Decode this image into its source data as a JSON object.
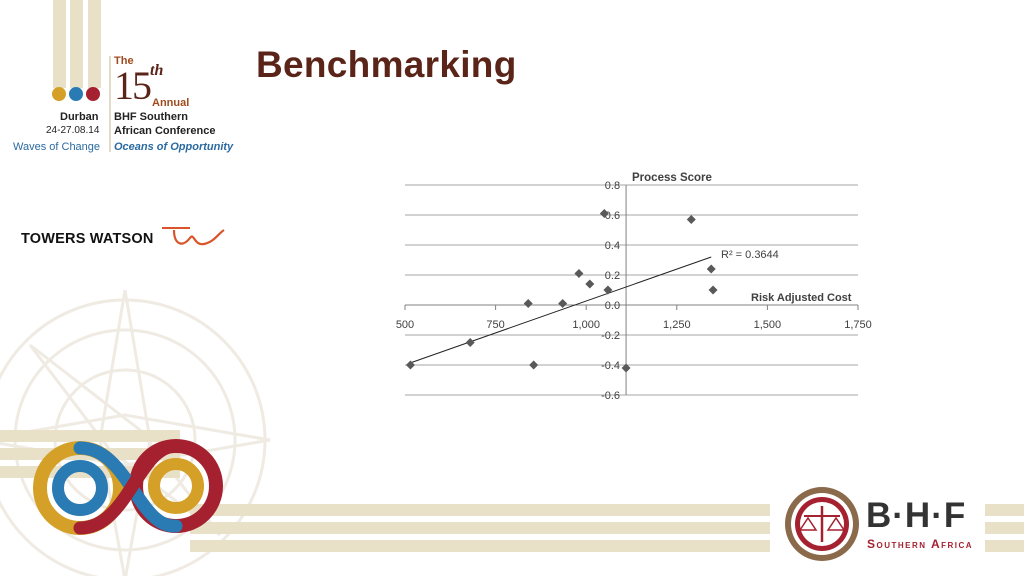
{
  "slide": {
    "title": "Benchmarking"
  },
  "conference_logo": {
    "the": "The",
    "number": "15",
    "ordinal": "th",
    "annual": "Annual",
    "city": "Durban",
    "dates": "24-27.08.14",
    "name_line1": "BHF Southern",
    "name_line2": "African Conference",
    "tagline_left": "Waves of Change",
    "tagline_right": "Oceans of Opportunity"
  },
  "sponsor_logo": {
    "text": "TOWERS WATSON"
  },
  "bhf_logo": {
    "letters": "B·H·F",
    "subtitle": "Southern Africa"
  },
  "chart_data": {
    "type": "scatter",
    "title": "Process Score",
    "xlabel": "Risk Adjusted Cost",
    "ylabel": "Process Score",
    "xlim": [
      500,
      1750
    ],
    "ylim": [
      -0.6,
      0.8
    ],
    "x_ticks": [
      500,
      750,
      1000,
      1250,
      1500,
      1750
    ],
    "x_tick_labels": [
      "500",
      "750",
      "1,000",
      "1,250",
      "1,500",
      "1,750"
    ],
    "y_ticks": [
      0.8,
      0.6,
      0.4,
      0.2,
      0.0,
      -0.2,
      -0.4,
      -0.6
    ],
    "y_tick_labels": [
      "0.8",
      "0.6",
      "0.4",
      "0.2",
      "0.0",
      "-0.2",
      "-0.4",
      "-0.6"
    ],
    "grid": true,
    "points": [
      {
        "x": 515,
        "y": -0.4
      },
      {
        "x": 680,
        "y": -0.25
      },
      {
        "x": 840,
        "y": 0.01
      },
      {
        "x": 855,
        "y": -0.4
      },
      {
        "x": 935,
        "y": 0.01
      },
      {
        "x": 980,
        "y": 0.21
      },
      {
        "x": 1010,
        "y": 0.14
      },
      {
        "x": 1050,
        "y": 0.61
      },
      {
        "x": 1060,
        "y": 0.1
      },
      {
        "x": 1110,
        "y": -0.42
      },
      {
        "x": 1290,
        "y": 0.57
      },
      {
        "x": 1345,
        "y": 0.24
      },
      {
        "x": 1350,
        "y": 0.1
      }
    ],
    "trendline": {
      "x": [
        510,
        1345
      ],
      "y": [
        -0.39,
        0.32
      ],
      "label": "R² = 0.3644"
    },
    "marker_color": "#595959",
    "grid_color": "#a6a6a6"
  }
}
